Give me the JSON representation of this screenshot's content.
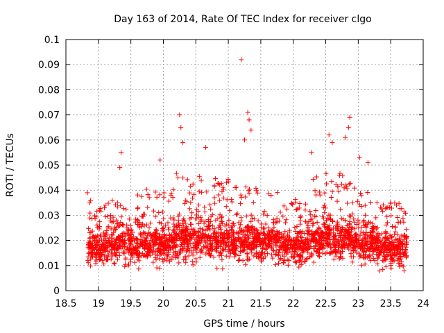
{
  "chart_data": {
    "type": "scatter",
    "title": "Day 163 of 2014, Rate Of TEC Index for receiver clgo",
    "xlabel": "GPS time / hours",
    "ylabel": "ROTI / TECUs",
    "xlim": [
      18.5,
      24
    ],
    "ylim": [
      0,
      0.1
    ],
    "x_ticks": [
      18.5,
      19,
      19.5,
      20,
      20.5,
      21,
      21.5,
      22,
      22.5,
      23,
      23.5,
      24
    ],
    "x_tick_labels": [
      "18.5",
      "19",
      "19.5",
      "20",
      "20.5",
      "21",
      "21.5",
      "22",
      "22.5",
      "23",
      "23.5",
      "24"
    ],
    "y_ticks": [
      0,
      0.01,
      0.02,
      0.03,
      0.04,
      0.05,
      0.06,
      0.07,
      0.08,
      0.09,
      0.1
    ],
    "y_tick_labels": [
      "0",
      "0.01",
      "0.02",
      "0.03",
      "0.04",
      "0.05",
      "0.06",
      "0.07",
      "0.08",
      "0.09",
      "0.1"
    ],
    "grid": true,
    "marker": "+",
    "marker_color": "#ff0000",
    "series": [
      {
        "name": "ROTI",
        "x_range": [
          18.83,
          23.75
        ],
        "notable_points": [
          {
            "x": 18.83,
            "y": 0.039
          },
          {
            "x": 19.35,
            "y": 0.055
          },
          {
            "x": 19.33,
            "y": 0.049
          },
          {
            "x": 19.95,
            "y": 0.052
          },
          {
            "x": 20.25,
            "y": 0.07
          },
          {
            "x": 20.27,
            "y": 0.065
          },
          {
            "x": 20.3,
            "y": 0.059
          },
          {
            "x": 20.65,
            "y": 0.057
          },
          {
            "x": 21.2,
            "y": 0.092
          },
          {
            "x": 21.3,
            "y": 0.071
          },
          {
            "x": 21.32,
            "y": 0.068
          },
          {
            "x": 21.35,
            "y": 0.064
          },
          {
            "x": 21.25,
            "y": 0.06
          },
          {
            "x": 22.28,
            "y": 0.055
          },
          {
            "x": 22.55,
            "y": 0.062
          },
          {
            "x": 22.6,
            "y": 0.059
          },
          {
            "x": 22.87,
            "y": 0.069
          },
          {
            "x": 22.85,
            "y": 0.065
          },
          {
            "x": 22.8,
            "y": 0.061
          },
          {
            "x": 23.02,
            "y": 0.053
          },
          {
            "x": 23.15,
            "y": 0.051
          }
        ]
      }
    ]
  }
}
